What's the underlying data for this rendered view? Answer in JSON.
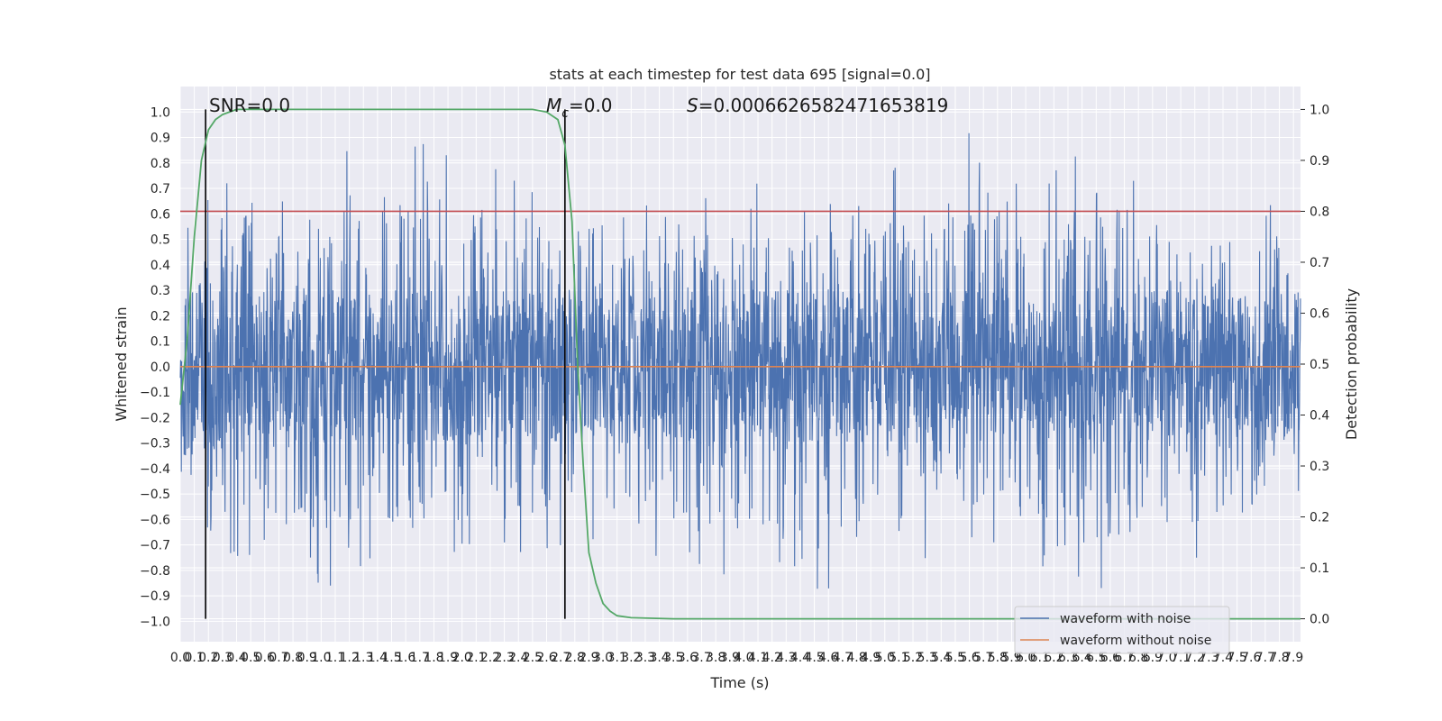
{
  "chart_data": {
    "type": "line",
    "title": "stats at each timestep for test data 695 [signal=0.0]",
    "xlabel": "Time (s)",
    "ylabel": "Whitened strain",
    "y2label": "Detection probability",
    "xlim": [
      0.0,
      7.95
    ],
    "ylim": [
      -1.08,
      1.1
    ],
    "y2lim": [
      -0.045,
      1.045
    ],
    "x_ticks": [
      0.0,
      0.1,
      0.2,
      0.3,
      0.4,
      0.5,
      0.6,
      0.7,
      0.8,
      0.9,
      1.0,
      1.1,
      1.2,
      1.3,
      1.4,
      1.5,
      1.6,
      1.7,
      1.8,
      1.9,
      2.0,
      2.1,
      2.2,
      2.3,
      2.4,
      2.5,
      2.6,
      2.7,
      2.8,
      2.9,
      3.0,
      3.1,
      3.2,
      3.3,
      3.4,
      3.5,
      3.6,
      3.7,
      3.8,
      3.9,
      4.0,
      4.1,
      4.2,
      4.3,
      4.4,
      4.5,
      4.6,
      4.7,
      4.8,
      4.9,
      5.0,
      5.1,
      5.2,
      5.3,
      5.4,
      5.5,
      5.6,
      5.7,
      5.8,
      5.9,
      6.0,
      6.1,
      6.2,
      6.3,
      6.4,
      6.5,
      6.6,
      6.7,
      6.8,
      6.9,
      7.0,
      7.1,
      7.2,
      7.3,
      7.4,
      7.5,
      7.6,
      7.7,
      7.8,
      7.9
    ],
    "y_ticks": [
      1.0,
      0.9,
      0.8,
      0.7,
      0.6,
      0.5,
      0.4,
      0.3,
      0.2,
      0.1,
      0.0,
      -0.1,
      -0.2,
      -0.3,
      -0.4,
      -0.5,
      -0.6,
      -0.7,
      -0.8,
      -0.9,
      -1.0
    ],
    "y2_ticks": [
      1.0,
      0.9,
      0.8,
      0.7,
      0.6,
      0.5,
      0.4,
      0.3,
      0.2,
      0.1,
      0.0
    ],
    "threshold": 0.8,
    "vlines": [
      0.18,
      2.73
    ],
    "annotations": {
      "snr": "SNR=0.0",
      "mc_symbol": "M",
      "mc_sub": "c",
      "mc_value": "=0.0",
      "s_symbol": "S",
      "s_value": "=0.0006626582471653819"
    },
    "series": [
      {
        "name": "waveform with noise",
        "color": "#4c72b0",
        "axis": "left",
        "envelope_upper": [
          [
            0.0,
            0.55
          ],
          [
            0.1,
            0.7
          ],
          [
            0.4,
            0.89
          ],
          [
            0.6,
            0.65
          ],
          [
            1.2,
            0.87
          ],
          [
            1.4,
            1.0
          ],
          [
            2.0,
            0.84
          ],
          [
            2.5,
            0.78
          ],
          [
            3.0,
            0.62
          ],
          [
            3.5,
            0.65
          ],
          [
            4.0,
            0.75
          ],
          [
            4.5,
            0.65
          ],
          [
            5.0,
            0.75
          ],
          [
            5.5,
            0.97
          ],
          [
            6.0,
            0.7
          ],
          [
            6.5,
            0.89
          ],
          [
            6.7,
            0.92
          ],
          [
            7.2,
            0.6
          ],
          [
            7.7,
            0.75
          ],
          [
            7.95,
            0.48
          ]
        ],
        "envelope_lower": [
          [
            0.0,
            -0.55
          ],
          [
            0.2,
            -0.7
          ],
          [
            0.8,
            -0.87
          ],
          [
            1.8,
            -0.84
          ],
          [
            2.4,
            -0.8
          ],
          [
            3.0,
            -0.75
          ],
          [
            3.7,
            -0.88
          ],
          [
            4.8,
            -0.88
          ],
          [
            5.5,
            -0.7
          ],
          [
            6.3,
            -0.85
          ],
          [
            6.5,
            -0.92
          ],
          [
            7.5,
            -0.72
          ],
          [
            7.95,
            -0.6
          ]
        ]
      },
      {
        "name": "waveform without noise",
        "color": "#dd8452",
        "axis": "left",
        "points": [
          [
            0.0,
            0.0
          ],
          [
            7.95,
            0.0
          ]
        ]
      },
      {
        "name": "detection probability",
        "color": "#55a868",
        "axis": "right",
        "points": [
          [
            0.0,
            0.42
          ],
          [
            0.05,
            0.55
          ],
          [
            0.1,
            0.75
          ],
          [
            0.15,
            0.9
          ],
          [
            0.2,
            0.96
          ],
          [
            0.25,
            0.98
          ],
          [
            0.3,
            0.99
          ],
          [
            0.4,
            1.0
          ],
          [
            1.0,
            1.0
          ],
          [
            2.0,
            1.0
          ],
          [
            2.5,
            1.0
          ],
          [
            2.6,
            0.995
          ],
          [
            2.68,
            0.98
          ],
          [
            2.73,
            0.93
          ],
          [
            2.78,
            0.78
          ],
          [
            2.82,
            0.5
          ],
          [
            2.86,
            0.3
          ],
          [
            2.9,
            0.13
          ],
          [
            2.95,
            0.07
          ],
          [
            3.0,
            0.03
          ],
          [
            3.05,
            0.015
          ],
          [
            3.1,
            0.006
          ],
          [
            3.2,
            0.002
          ],
          [
            3.5,
            0.0
          ],
          [
            7.95,
            0.0
          ]
        ]
      }
    ],
    "legend": {
      "placement": "lower-right",
      "entries": [
        {
          "label": "waveform with noise",
          "color": "#4c72b0"
        },
        {
          "label": "waveform without noise",
          "color": "#dd8452"
        }
      ]
    },
    "grid": true,
    "colors": {
      "background": "#eaeaf2",
      "grid": "#ffffff",
      "threshold": "#c44e52",
      "vline": "#000000"
    }
  }
}
